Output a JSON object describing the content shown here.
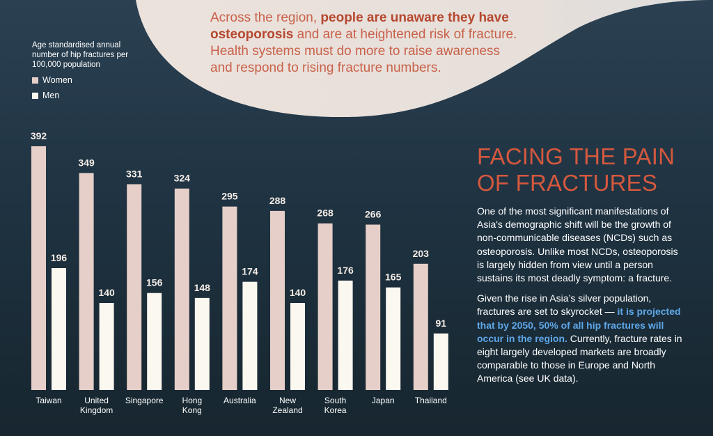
{
  "callout": {
    "part1": "Across the region, ",
    "bold": "people are unaware they have osteoporosis",
    "part2": " and are at heightened risk of fracture. Health systems must do more to raise awareness and respond to rising fracture numbers."
  },
  "legend": {
    "ylabel": "Age standardised annual number of hip fractures per 100,000 population",
    "women": "Women",
    "men": "Men"
  },
  "article": {
    "heading_line1": "FACING THE PAIN",
    "heading_line2": "OF FRACTURES",
    "para1": "One of the most significant manifestations of Asia's demographic shift will be the growth of non-communicable diseases (NCDs) such as osteoporosis. Unlike most NCDs, osteoporosis is largely hidden from view until a person sustains its most deadly symptom: a fracture.",
    "para2_start": "Given the rise in Asia’s silver population, fractures are set to skyrocket — ",
    "para2_highlight": "it is projected that by 2050, 50% of all hip fractures will occur in the region.",
    "para2_end": " Currently, fracture rates in eight largely developed markets are broadly comparable to those in Europe and North America (see UK data)."
  },
  "colors": {
    "women": "#e6cfc8",
    "men": "#fbf8f0",
    "accent": "#d4583e",
    "highlight": "#5ea7e8"
  },
  "chart_data": {
    "type": "bar",
    "categories": [
      [
        "Taiwan"
      ],
      [
        "United",
        "Kingdom"
      ],
      [
        "Singapore"
      ],
      [
        "Hong",
        "Kong"
      ],
      [
        "Australia"
      ],
      [
        "New",
        "Zealand"
      ],
      [
        "South",
        "Korea"
      ],
      [
        "Japan"
      ],
      [
        "Thailand"
      ]
    ],
    "series": [
      {
        "name": "Women",
        "values": [
          392,
          349,
          331,
          324,
          295,
          288,
          268,
          266,
          203
        ]
      },
      {
        "name": "Men",
        "values": [
          196,
          140,
          156,
          148,
          174,
          140,
          176,
          165,
          91
        ]
      }
    ],
    "ylabel": "Age standardised annual number of hip fractures per 100,000 population",
    "ylim": [
      0,
      392
    ],
    "grid": false,
    "legend_position": "top-left"
  }
}
